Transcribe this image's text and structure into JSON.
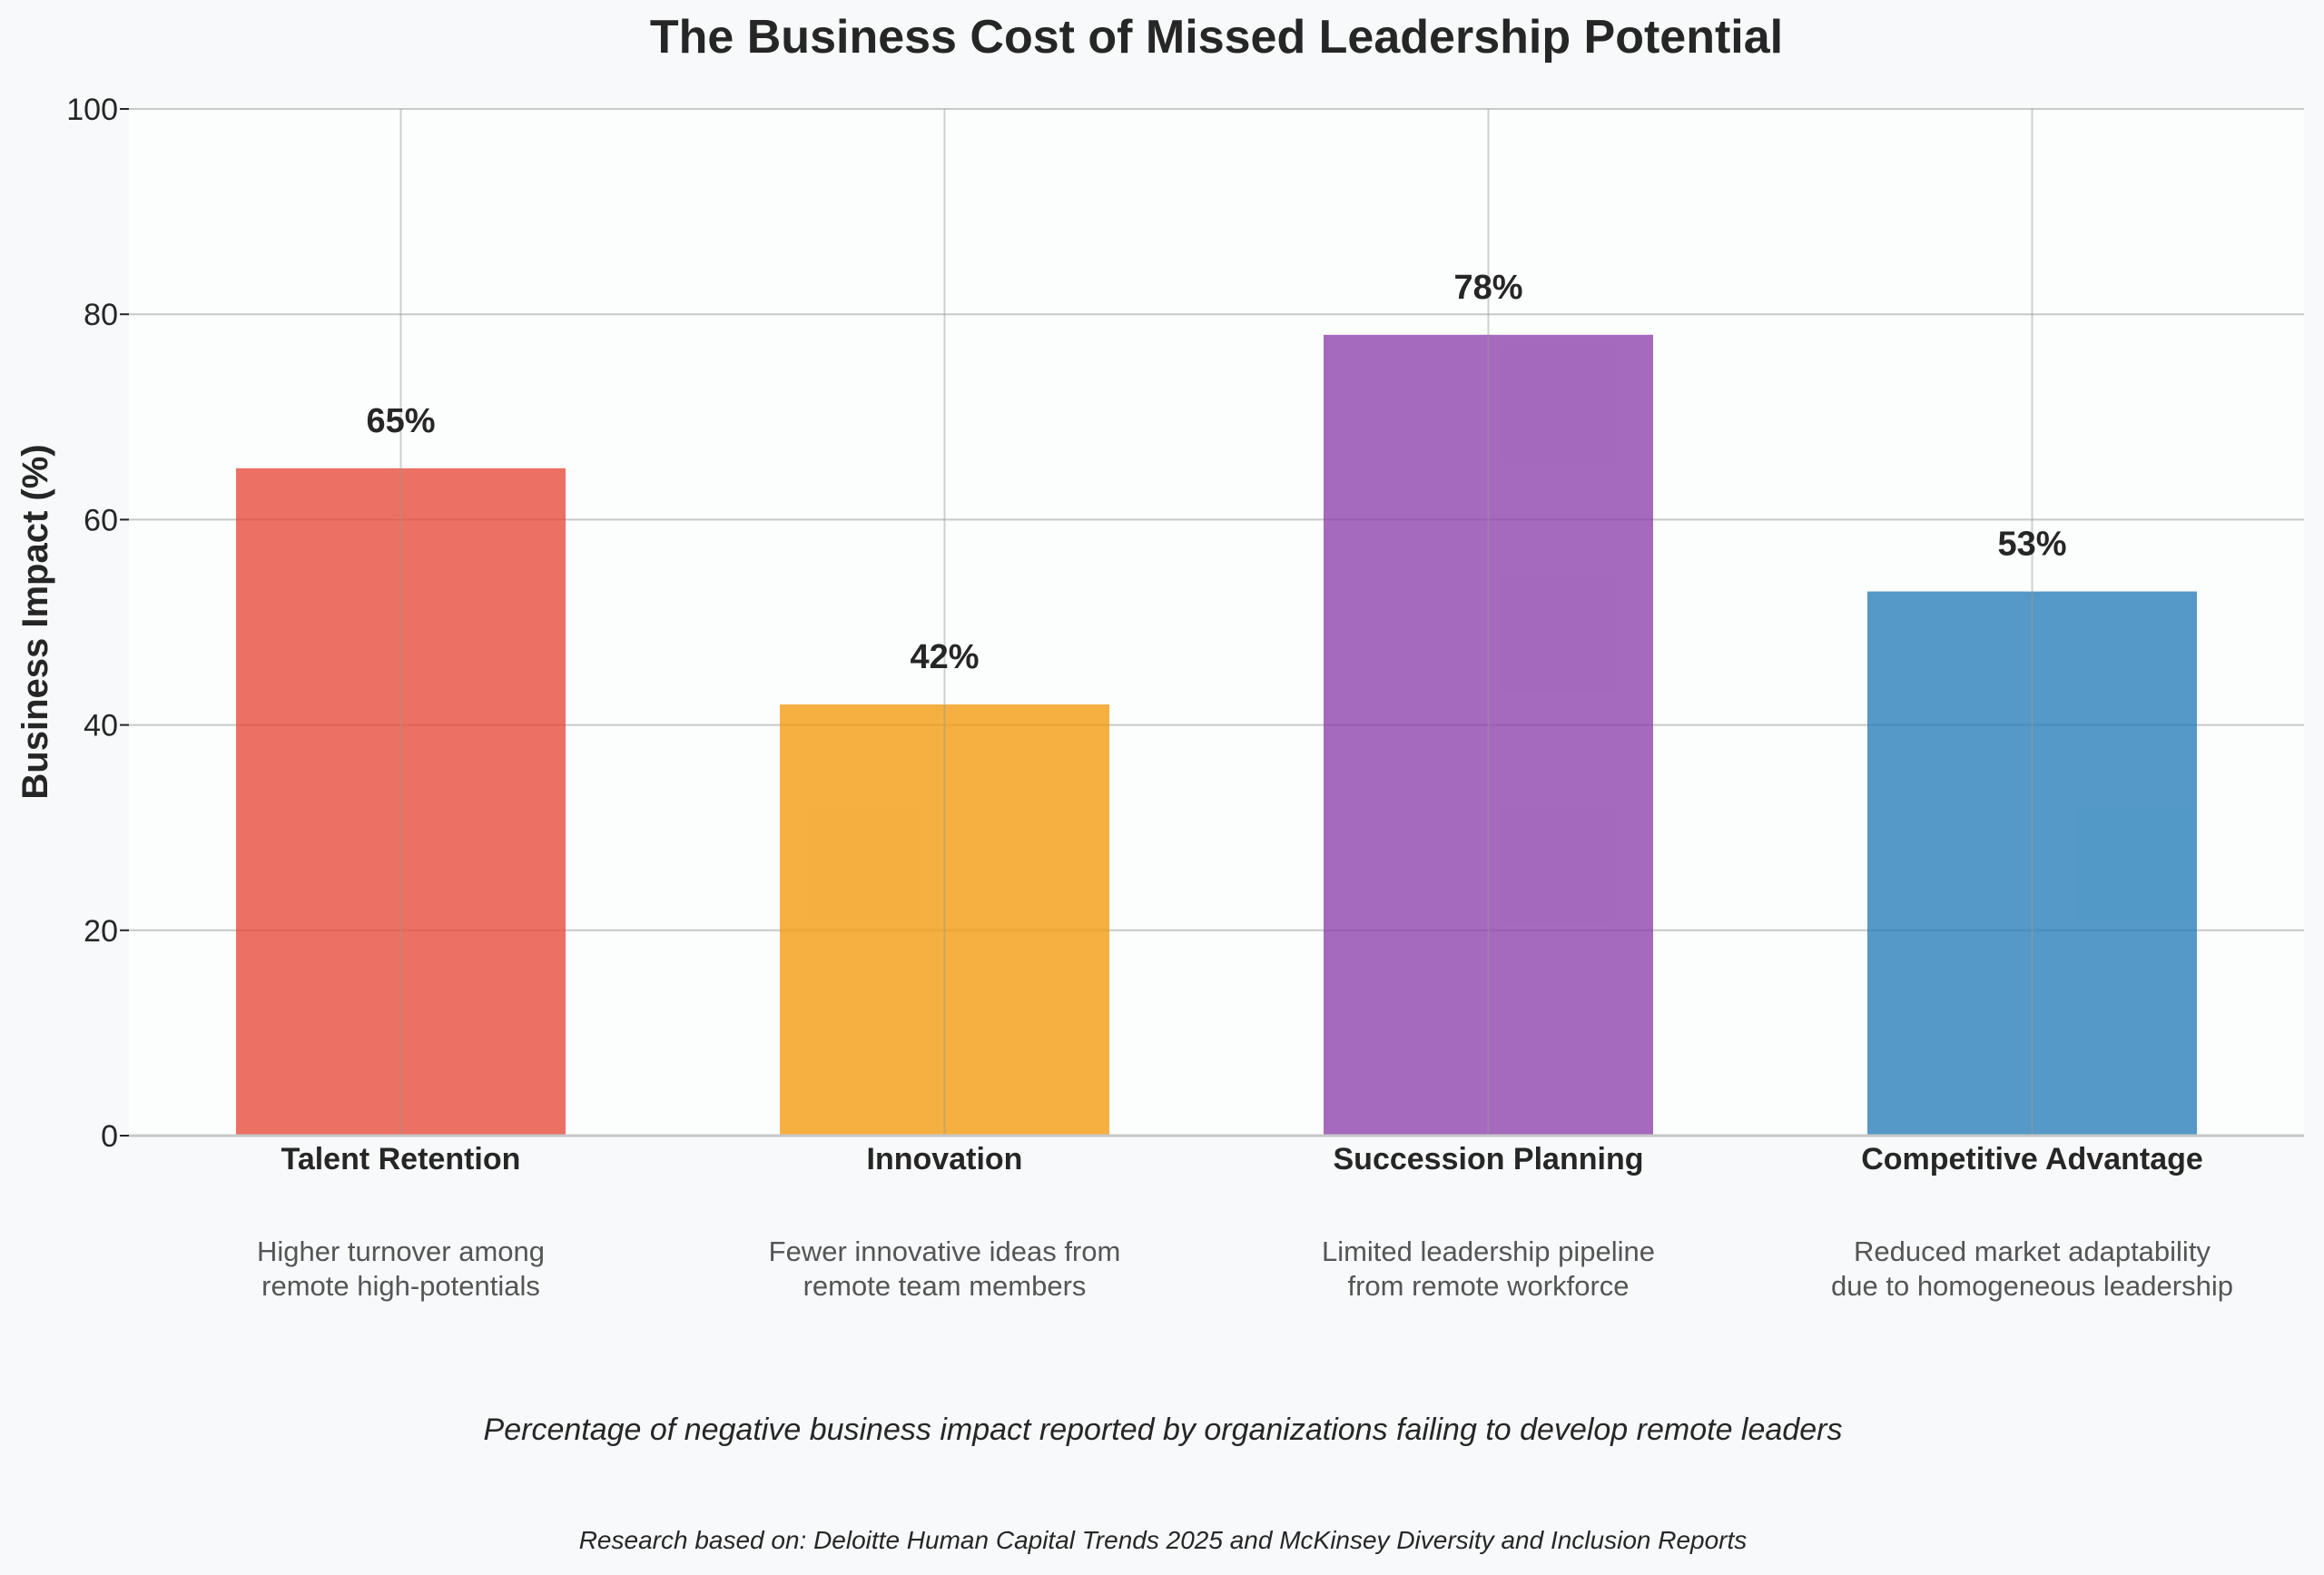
{
  "chart_data": {
    "type": "bar",
    "title": "The Business Cost of Missed Leadership Potential",
    "ylabel": "Business Impact (%)",
    "xlabel": "",
    "ylim": [
      0,
      100
    ],
    "yticks": [
      0,
      20,
      40,
      60,
      80,
      100
    ],
    "grid": true,
    "categories": [
      "Talent Retention",
      "Innovation",
      "Succession Planning",
      "Competitive Advantage"
    ],
    "values": [
      65,
      42,
      78,
      53
    ],
    "value_labels": [
      "65%",
      "42%",
      "78%",
      "53%"
    ],
    "colors": [
      "#e74c3c",
      "#f39c12",
      "#8e44ad",
      "#2980b9"
    ],
    "descriptions": [
      [
        "Higher turnover among",
        "remote high-potentials"
      ],
      [
        "Fewer innovative ideas from",
        "remote team members"
      ],
      [
        "Limited leadership pipeline",
        "from remote workforce"
      ],
      [
        "Reduced market adaptability",
        "due to homogeneous leadership"
      ]
    ],
    "subtitle": "Percentage of negative business impact reported by organizations failing to develop remote leaders",
    "source": "Research based on: Deloitte Human Capital Trends 2025 and McKinsey Diversity and Inclusion Reports"
  }
}
